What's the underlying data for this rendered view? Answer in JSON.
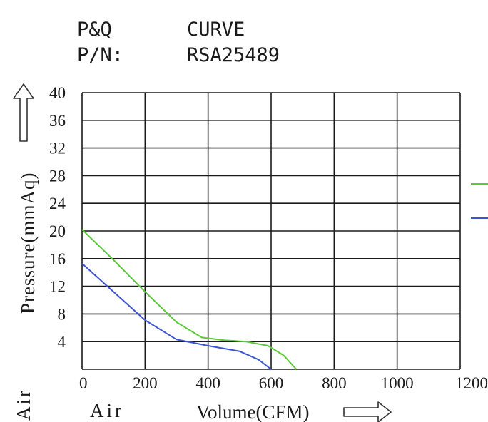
{
  "header": {
    "pq_label": "P&Q",
    "curve_label": "CURVE",
    "pn_label": "P/N:",
    "part_number": "RSA25489"
  },
  "side_label": "Air",
  "chart_data": {
    "type": "line",
    "title": "",
    "xlabel_prefix": "Air",
    "xlabel": "Volume(CFM)",
    "ylabel": "Pressure(mmAq)",
    "xlim": [
      0,
      1200
    ],
    "ylim": [
      0,
      40
    ],
    "x_ticks": [
      0,
      200,
      400,
      600,
      800,
      1000,
      1200
    ],
    "y_ticks": [
      4,
      8,
      12,
      16,
      20,
      24,
      28,
      32,
      36,
      40
    ],
    "grid": true,
    "series": [
      {
        "color": "#5cc83a",
        "x": [
          0,
          100,
          200,
          300,
          380,
          450,
          520,
          590,
          640,
          680
        ],
        "y": [
          20.2,
          15.8,
          11.2,
          6.8,
          4.6,
          4.2,
          4.0,
          3.4,
          2.0,
          0
        ]
      },
      {
        "color": "#3d55d1",
        "x": [
          0,
          100,
          200,
          300,
          400,
          500,
          560,
          600
        ],
        "y": [
          15.3,
          11.2,
          7.1,
          4.3,
          3.4,
          2.6,
          1.4,
          0
        ]
      }
    ]
  }
}
